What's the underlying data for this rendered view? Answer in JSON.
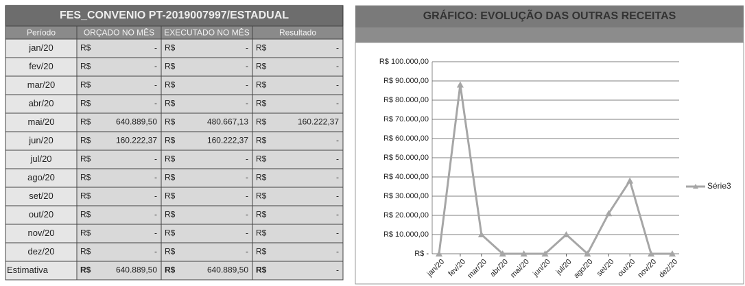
{
  "table": {
    "title": "FES_CONVENIO PT-2019007997/ESTADUAL",
    "headers": [
      "Período",
      "ORÇADO NO MÊS",
      "EXECUTADO NO MÊS",
      "Resultado"
    ],
    "rows": [
      [
        "jan/20",
        "R$",
        "-",
        "R$",
        "-",
        "R$",
        "-"
      ],
      [
        "fev/20",
        "R$",
        "-",
        "R$",
        "-",
        "R$",
        "-"
      ],
      [
        "mar/20",
        "R$",
        "-",
        "R$",
        "-",
        "R$",
        "-"
      ],
      [
        "abr/20",
        "R$",
        "-",
        "R$",
        "-",
        "R$",
        "-"
      ],
      [
        "mai/20",
        "R$",
        "640.889,50",
        "R$",
        "480.667,13",
        "R$",
        "160.222,37"
      ],
      [
        "jun/20",
        "R$",
        "160.222,37",
        "R$",
        "160.222,37",
        "R$",
        "-"
      ],
      [
        "jul/20",
        "R$",
        "-",
        "R$",
        "-",
        "R$",
        "-"
      ],
      [
        "ago/20",
        "R$",
        "-",
        "R$",
        "-",
        "R$",
        "-"
      ],
      [
        "set/20",
        "R$",
        "-",
        "R$",
        "-",
        "R$",
        "-"
      ],
      [
        "out/20",
        "R$",
        "-",
        "R$",
        "-",
        "R$",
        "-"
      ],
      [
        "nov/20",
        "R$",
        "-",
        "R$",
        "-",
        "R$",
        "-"
      ],
      [
        "dez/20",
        "R$",
        "-",
        "R$",
        "-",
        "R$",
        "-"
      ],
      [
        "Estimativa",
        "R$",
        "640.889,50",
        "R$",
        "640.889,50",
        "R$",
        "-"
      ]
    ]
  },
  "chart_data": {
    "type": "line",
    "title": "GRÁFICO: EVOLUÇÃO DAS OUTRAS RECEITAS",
    "categories": [
      "jan/20",
      "fev/20",
      "mar/20",
      "abr/20",
      "mai/20",
      "jun/20",
      "jul/20",
      "ago/20",
      "set/20",
      "out/20",
      "nov/20",
      "dez/20"
    ],
    "series": [
      {
        "name": "Série3",
        "color": "#a6a6a6",
        "values": [
          0,
          88000,
          10000,
          0,
          0,
          0,
          10000,
          0,
          21000,
          38000,
          0,
          0
        ]
      }
    ],
    "ylim": [
      0,
      100000
    ],
    "yticks": [
      {
        "value": 0,
        "label": "R$ -"
      },
      {
        "value": 10000,
        "label": "R$ 10.000,00"
      },
      {
        "value": 20000,
        "label": "R$ 20.000,00"
      },
      {
        "value": 30000,
        "label": "R$ 30.000,00"
      },
      {
        "value": 40000,
        "label": "R$ 40.000,00"
      },
      {
        "value": 50000,
        "label": "R$ 50.000,00"
      },
      {
        "value": 60000,
        "label": "R$ 60.000,00"
      },
      {
        "value": 70000,
        "label": "R$ 70.000,00"
      },
      {
        "value": 80000,
        "label": "R$ 80.000,00"
      },
      {
        "value": 90000,
        "label": "R$ 90.000,00"
      },
      {
        "value": 100000,
        "label": "R$ 100.000,00"
      }
    ],
    "grid": true,
    "legend": "right"
  }
}
